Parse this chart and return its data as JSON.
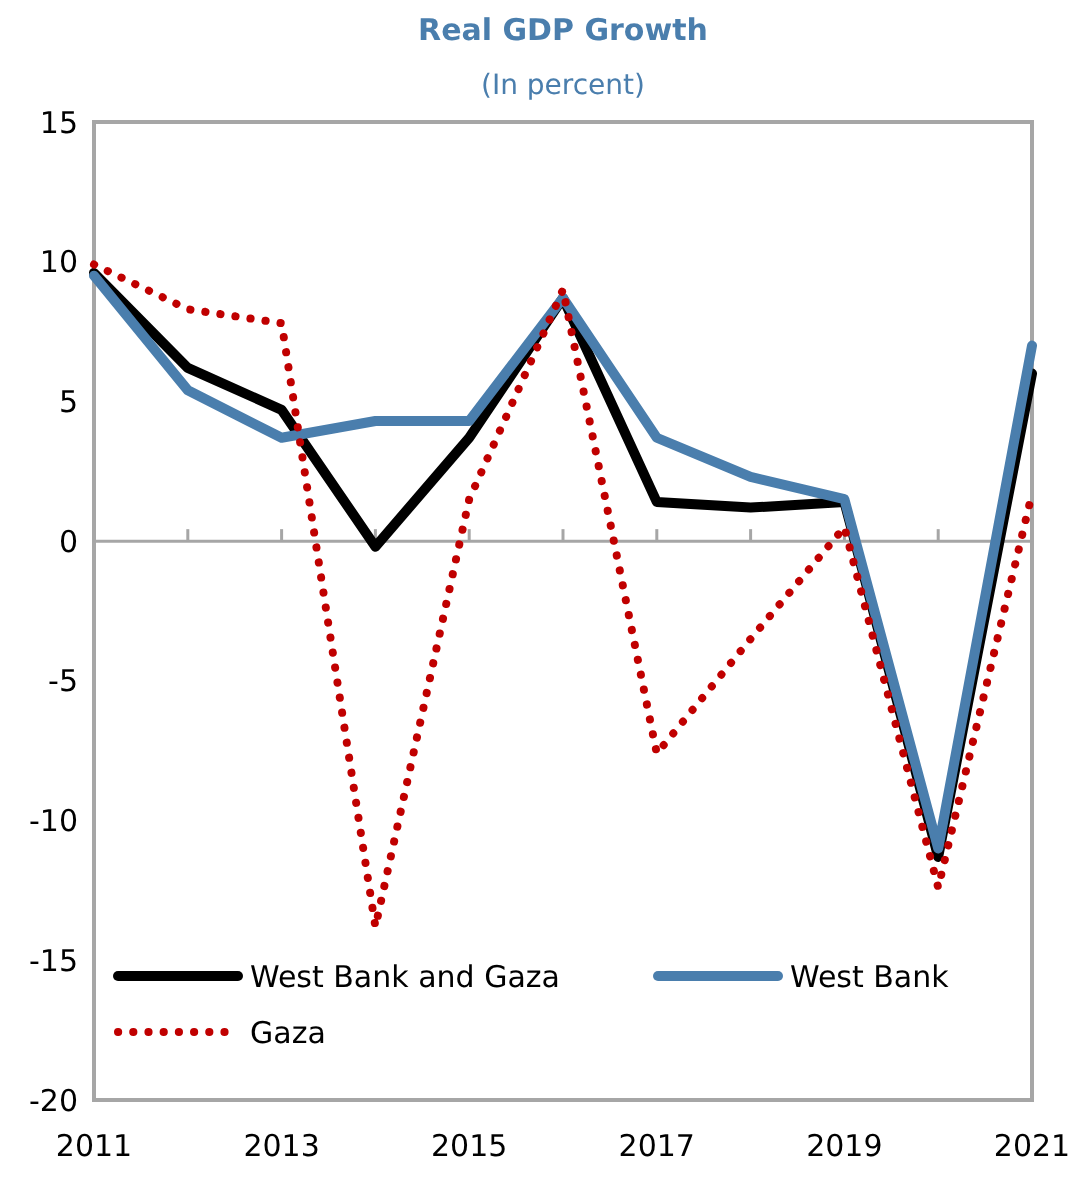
{
  "chart_data": {
    "type": "line",
    "title": "Real GDP Growth",
    "subtitle": "(In percent)",
    "x": [
      2011,
      2012,
      2013,
      2014,
      2015,
      2016,
      2017,
      2018,
      2019,
      2020,
      2021
    ],
    "xlim": [
      2011,
      2021
    ],
    "xticks": [
      2011,
      2013,
      2015,
      2017,
      2019,
      2021
    ],
    "ylim": [
      -20,
      15
    ],
    "yticks": [
      -20,
      -15,
      -10,
      -5,
      0,
      5,
      10,
      15
    ],
    "legend": "bottom left",
    "series": [
      {
        "name": "West Bank and Gaza",
        "color": "#000000",
        "line_style": "solid",
        "values": [
          9.6,
          6.2,
          4.7,
          -0.2,
          3.7,
          8.7,
          1.4,
          1.2,
          1.4,
          -11.3,
          6.0
        ]
      },
      {
        "name": "West Bank",
        "color": "#4a7ead",
        "line_style": "solid",
        "values": [
          9.5,
          5.4,
          3.7,
          4.3,
          4.3,
          8.7,
          3.7,
          2.3,
          1.5,
          -11.0,
          7.0
        ]
      },
      {
        "name": "Gaza",
        "color": "#c00000",
        "line_style": "dotted",
        "values": [
          9.9,
          8.3,
          7.8,
          -13.8,
          1.5,
          9.0,
          -7.6,
          -3.5,
          0.5,
          -12.4,
          1.7
        ]
      }
    ]
  }
}
